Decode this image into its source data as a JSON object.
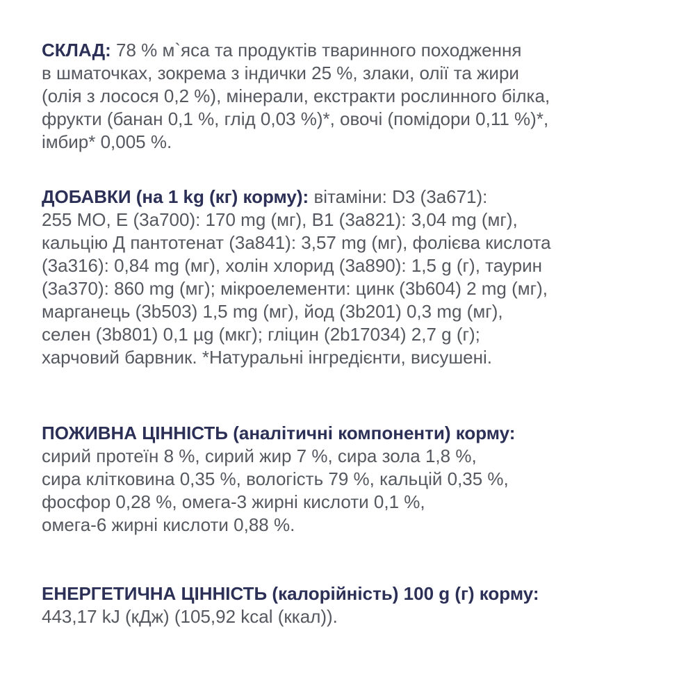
{
  "sections": [
    {
      "heading": "СКЛАД:",
      "first": " 78 % м`яса та продуктів тваринного походження",
      "lines": [
        "в шматочках, зокрема з індички 25 %, злаки, олії та жири",
        "(олія з лосося 0,2 %), мінерали, екстракти рослинного білка,",
        "фрукти (банан 0,1 %, глід 0,03 %)*, овочі (помідори 0,11 %)*,",
        "імбир* 0,005 %."
      ]
    },
    {
      "heading": "ДОБАВКИ (на 1 kg (кг) корму):",
      "first": " вітаміни: D3 (3а671):",
      "lines": [
        "255 МО, E (3a700): 170 mg (мг), B1 (3a821): 3,04 mg (мг),",
        "кальцію Д пантотенат (3a841): 3,57 mg (мг), фолієва кислота",
        "(3a316): 0,84 mg (мг), холін хлорид (3a890): 1,5 g (г), таурин",
        "(3a370): 860 mg (мг); мікроелементи: цинк (3b604) 2 mg (мг),",
        "марганець (3b503) 1,5 mg (мг), йод (3b201) 0,3 mg (мг),",
        "селен (3b801) 0,1 µg (мкг); гліцин (2b17034) 2,7 g (г);",
        "харчовий барвник. *Натуральні інгредієнти, висушені."
      ]
    },
    {
      "heading": "ПОЖИВНА ЦІННІСТЬ (аналітичні компоненти) корму:",
      "first": "",
      "lines": [
        "сирий протеїн 8 %, сирий жир 7 %, сира зола 1,8 %,",
        "сира клітковина 0,35 %, вологість 79 %, кальцій 0,35 %,",
        "фосфор 0,28 %, омега-3 жирні кислоти 0,1 %,",
        "омега-6 жирні кислоти 0,88 %."
      ]
    },
    {
      "heading": "ЕНЕРГЕТИЧНА ЦІННІСТЬ (калорійність) 100 g (г) корму:",
      "first": "",
      "lines": [
        "443,17 kJ (кДж) (105,92 kcal (ккал))."
      ]
    }
  ],
  "colors": {
    "heading": "#2c3057",
    "text": "#55585f",
    "background": "#ffffff"
  }
}
